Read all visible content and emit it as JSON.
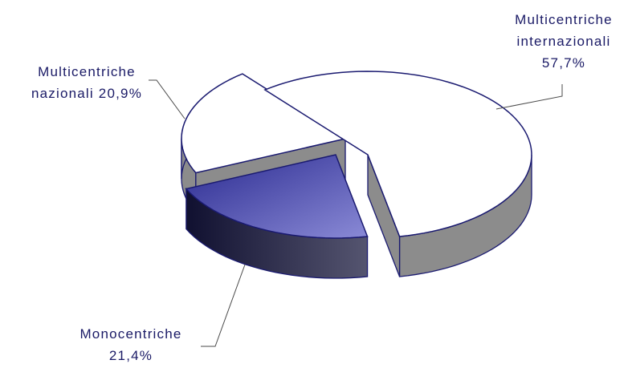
{
  "chart_data": {
    "type": "pie",
    "style": "3d-exploded",
    "slices": [
      {
        "name": "Multicentriche internazionali",
        "value": 57.7,
        "label_lines": [
          "Multicentriche",
          "internazionali",
          "57,7%"
        ],
        "color": "#ffffff"
      },
      {
        "name": "Multicentriche nazionali",
        "value": 20.9,
        "label_lines": [
          "Multicentriche",
          "nazionali 20,9%"
        ],
        "color": "#ffffff"
      },
      {
        "name": "Monocentriche",
        "value": 21.4,
        "label_lines": [
          "Monocentriche",
          "21,4%"
        ],
        "color": "#7070c0"
      }
    ],
    "colors": {
      "outline": "#1a1a70",
      "side_white": "#8c8c8c",
      "side_blue": "#404058",
      "leader": "#4a4a4a",
      "text": "#1a1a66"
    }
  }
}
